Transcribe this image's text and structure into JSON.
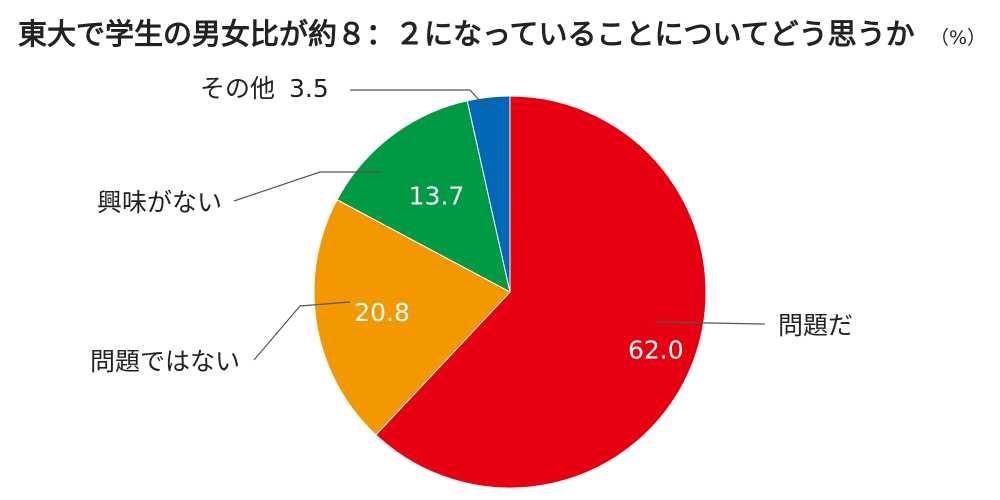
{
  "chart_data": {
    "type": "pie",
    "title": "東大で学生の男女比が約８：２になっていることについてどう思うか",
    "unit": "（%）",
    "slices": [
      {
        "label": "問題だ",
        "value": 62.0,
        "value_label": "62.0",
        "color": "#e60012"
      },
      {
        "label": "問題ではない",
        "value": 20.8,
        "value_label": "20.8",
        "color": "#f39800"
      },
      {
        "label": "興味がない",
        "value": 13.7,
        "value_label": "13.7",
        "color": "#009944"
      },
      {
        "label": "その他",
        "value": 3.5,
        "value_label": "3.5",
        "color": "#0068b7"
      }
    ]
  }
}
